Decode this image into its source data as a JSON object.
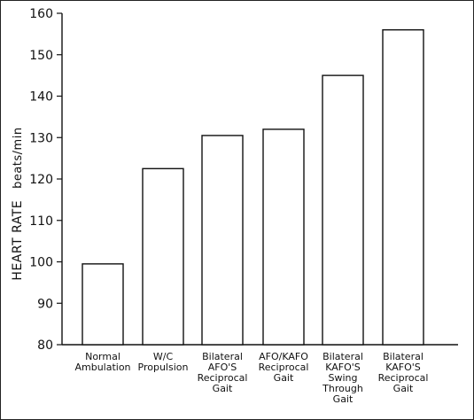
{
  "chart_data": {
    "type": "bar",
    "ylabel": "HEART RATE beats/min",
    "ylabel_main": "HEART RATE",
    "ylabel_unit": "beats/min",
    "ylim": [
      80,
      160
    ],
    "yticks": [
      80,
      90,
      100,
      110,
      120,
      130,
      140,
      150,
      160
    ],
    "grid": false,
    "categories": [
      [
        "Normal",
        "Ambulation"
      ],
      [
        "W/C",
        "Propulsion"
      ],
      [
        "Bilateral",
        "AFO'S",
        "Reciprocal",
        "Gait"
      ],
      [
        "AFO/KAFO",
        "Reciprocal",
        "Gait"
      ],
      [
        "Bilateral",
        "KAFO'S",
        "Swing",
        "Through",
        "Gait"
      ],
      [
        "Bilateral",
        "KAFO'S",
        "Reciprocal",
        "Gait"
      ]
    ],
    "values": [
      99.5,
      122.5,
      130.5,
      132,
      145,
      156
    ]
  }
}
